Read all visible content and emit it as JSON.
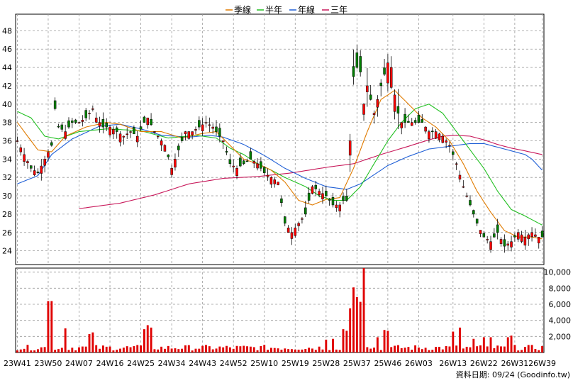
{
  "chart_data": {
    "type": "candlestick",
    "legend": {
      "placement": "top-center",
      "entries": [
        {
          "label": "季線",
          "color": "#e07b00"
        },
        {
          "label": "半年",
          "color": "#22c022"
        },
        {
          "label": "年線",
          "color": "#1f5fd6"
        },
        {
          "label": "三年",
          "color": "#c8185a"
        }
      ]
    },
    "colors": {
      "up": "#ff0000",
      "down": "#008000",
      "volume": "#e00000",
      "grid": "#999999"
    },
    "price_axis": {
      "min": 22.5,
      "max": 49.5,
      "ticks": [
        24,
        26,
        28,
        30,
        32,
        34,
        36,
        38,
        40,
        42,
        44,
        46,
        48
      ]
    },
    "volume_axis": {
      "min": 0,
      "max": 10500,
      "ticks": [
        2000,
        4000,
        6000,
        8000,
        10000
      ],
      "tick_labels": [
        "2,000",
        "4,000",
        "6,000",
        "8,000",
        "10,000"
      ]
    },
    "x_axis": {
      "count": 154,
      "tick_labels": [
        "23W41",
        "23W50",
        "24W07",
        "24W16",
        "24W25",
        "24W34",
        "24W43",
        "24W52",
        "25W10",
        "25W19",
        "25W28",
        "25W37",
        "25W46",
        "26W03",
        "26W13",
        "26W22",
        "26W31",
        "26W39"
      ],
      "tick_indices": [
        0,
        9,
        18,
        27,
        36,
        45,
        54,
        63,
        72,
        81,
        90,
        99,
        108,
        117,
        127,
        136,
        145,
        153
      ]
    },
    "price_anchors": [
      [
        0,
        36
      ],
      [
        4,
        33
      ],
      [
        6,
        32.5
      ],
      [
        8,
        34
      ],
      [
        10,
        35.5
      ],
      [
        11,
        39.5
      ],
      [
        12,
        37.5
      ],
      [
        14,
        37
      ],
      [
        16,
        38
      ],
      [
        18,
        38
      ],
      [
        20,
        38.5
      ],
      [
        22,
        39.5
      ],
      [
        23,
        38.5
      ],
      [
        25,
        37.5
      ],
      [
        27,
        37.5
      ],
      [
        29,
        37
      ],
      [
        31,
        36.5
      ],
      [
        33,
        37
      ],
      [
        35,
        36.5
      ],
      [
        37,
        38
      ],
      [
        38,
        38.5
      ],
      [
        40,
        37
      ],
      [
        43,
        35.5
      ],
      [
        45,
        33
      ],
      [
        47,
        35
      ],
      [
        49,
        37
      ],
      [
        51,
        37
      ],
      [
        53,
        37.5
      ],
      [
        55,
        38
      ],
      [
        57,
        37.5
      ],
      [
        60,
        36
      ],
      [
        62,
        33.5
      ],
      [
        64,
        33
      ],
      [
        66,
        33.5
      ],
      [
        68,
        34
      ],
      [
        70,
        33.5
      ],
      [
        72,
        32.5
      ],
      [
        74,
        32
      ],
      [
        76,
        31.5
      ],
      [
        78,
        27
      ],
      [
        80,
        26
      ],
      [
        82,
        27
      ],
      [
        84,
        28
      ],
      [
        86,
        31
      ],
      [
        88,
        30.5
      ],
      [
        90,
        30
      ],
      [
        92,
        29
      ],
      [
        94,
        29
      ],
      [
        95,
        29.5
      ],
      [
        96,
        29.5
      ],
      [
        97,
        36
      ],
      [
        98,
        43
      ],
      [
        99,
        44
      ],
      [
        100,
        43.5
      ],
      [
        101,
        40
      ],
      [
        102,
        42
      ],
      [
        104,
        39
      ],
      [
        106,
        42
      ],
      [
        108,
        44.5
      ],
      [
        109,
        44
      ],
      [
        110,
        41
      ],
      [
        111,
        39
      ],
      [
        112,
        38
      ],
      [
        114,
        38
      ],
      [
        116,
        38
      ],
      [
        118,
        38
      ],
      [
        120,
        37
      ],
      [
        122,
        37
      ],
      [
        124,
        36.5
      ],
      [
        126,
        35.5
      ],
      [
        128,
        33.5
      ],
      [
        130,
        31
      ],
      [
        132,
        29
      ],
      [
        134,
        27
      ],
      [
        136,
        25.5
      ],
      [
        138,
        25
      ],
      [
        140,
        26
      ],
      [
        142,
        24.5
      ],
      [
        144,
        25
      ],
      [
        146,
        26
      ],
      [
        148,
        25.5
      ],
      [
        150,
        26
      ],
      [
        152,
        25.5
      ],
      [
        153,
        25.5
      ]
    ],
    "ma_quarter": [
      [
        0,
        38
      ],
      [
        6,
        35
      ],
      [
        10,
        34.8
      ],
      [
        14,
        36.5
      ],
      [
        20,
        37.5
      ],
      [
        26,
        38
      ],
      [
        30,
        37.8
      ],
      [
        36,
        37
      ],
      [
        42,
        37
      ],
      [
        48,
        36.3
      ],
      [
        54,
        36.8
      ],
      [
        58,
        37
      ],
      [
        62,
        35.5
      ],
      [
        66,
        34
      ],
      [
        70,
        33.5
      ],
      [
        74,
        32.8
      ],
      [
        78,
        31.5
      ],
      [
        82,
        29.5
      ],
      [
        86,
        29
      ],
      [
        90,
        29.6
      ],
      [
        94,
        29.8
      ],
      [
        98,
        33
      ],
      [
        102,
        37
      ],
      [
        106,
        40.5
      ],
      [
        110,
        41.5
      ],
      [
        114,
        40
      ],
      [
        118,
        38.5
      ],
      [
        122,
        37.5
      ],
      [
        126,
        36
      ],
      [
        130,
        33.5
      ],
      [
        134,
        30.5
      ],
      [
        138,
        28.2
      ],
      [
        142,
        26.2
      ],
      [
        146,
        25.5
      ],
      [
        150,
        25.5
      ],
      [
        153,
        25.3
      ]
    ],
    "ma_half": [
      [
        0,
        39.2
      ],
      [
        4,
        38.5
      ],
      [
        8,
        36.5
      ],
      [
        12,
        36.2
      ],
      [
        18,
        37
      ],
      [
        26,
        37.3
      ],
      [
        36,
        37.1
      ],
      [
        44,
        36.3
      ],
      [
        52,
        36.6
      ],
      [
        58,
        36.3
      ],
      [
        62,
        35.2
      ],
      [
        66,
        34.5
      ],
      [
        70,
        33.5
      ],
      [
        74,
        32.8
      ],
      [
        78,
        32
      ],
      [
        84,
        31
      ],
      [
        88,
        30
      ],
      [
        92,
        29.5
      ],
      [
        96,
        29.5
      ],
      [
        100,
        31
      ],
      [
        104,
        33.5
      ],
      [
        108,
        36
      ],
      [
        112,
        38
      ],
      [
        116,
        39.5
      ],
      [
        120,
        40
      ],
      [
        124,
        39
      ],
      [
        128,
        37
      ],
      [
        132,
        35
      ],
      [
        136,
        33
      ],
      [
        140,
        30.5
      ],
      [
        144,
        28.5
      ],
      [
        148,
        27.8
      ],
      [
        153,
        26.8
      ]
    ],
    "ma_year": [
      [
        0,
        31.3
      ],
      [
        6,
        32.2
      ],
      [
        10,
        34.5
      ],
      [
        16,
        36.2
      ],
      [
        24,
        37.6
      ],
      [
        30,
        37.8
      ],
      [
        36,
        37.3
      ],
      [
        42,
        36.6
      ],
      [
        50,
        36.4
      ],
      [
        56,
        36.6
      ],
      [
        60,
        36.4
      ],
      [
        66,
        35.6
      ],
      [
        72,
        34.4
      ],
      [
        78,
        33
      ],
      [
        84,
        31.9
      ],
      [
        90,
        31
      ],
      [
        96,
        30.7
      ],
      [
        100,
        31.3
      ],
      [
        104,
        32.3
      ],
      [
        108,
        33.3
      ],
      [
        114,
        34.3
      ],
      [
        120,
        35.1
      ],
      [
        126,
        35.4
      ],
      [
        132,
        35.7
      ],
      [
        136,
        35.7
      ],
      [
        140,
        35.3
      ],
      [
        144,
        34.9
      ],
      [
        148,
        34.5
      ],
      [
        150,
        34
      ],
      [
        153,
        32.8
      ]
    ],
    "ma_3year": [
      [
        18,
        28.6
      ],
      [
        30,
        29.2
      ],
      [
        40,
        30.1
      ],
      [
        50,
        31.3
      ],
      [
        60,
        31.9
      ],
      [
        70,
        32.1
      ],
      [
        80,
        32.5
      ],
      [
        90,
        33.1
      ],
      [
        98,
        33.5
      ],
      [
        106,
        34.5
      ],
      [
        114,
        35.4
      ],
      [
        120,
        36.1
      ],
      [
        124,
        36.5
      ],
      [
        128,
        36.6
      ],
      [
        132,
        36.5
      ],
      [
        136,
        36.1
      ],
      [
        140,
        35.6
      ],
      [
        144,
        35.2
      ],
      [
        148,
        34.9
      ],
      [
        153,
        34.5
      ]
    ],
    "volume_spikes": {
      "9": 6400,
      "10": 6400,
      "14": 3000,
      "21": 2300,
      "22": 2500,
      "37": 2900,
      "38": 3400,
      "39": 3100,
      "90": 1600,
      "92": 1700,
      "95": 2900,
      "96": 2700,
      "97": 5500,
      "98": 8100,
      "99": 6900,
      "100": 6300,
      "101": 10500,
      "105": 1900,
      "107": 2800,
      "108": 2700,
      "127": 2600,
      "129": 3100,
      "133": 1700,
      "136": 1900,
      "138": 1900,
      "143": 1900,
      "144": 2100
    },
    "footer": "資料日期: 09/24  (Goodinfo.tw)"
  }
}
